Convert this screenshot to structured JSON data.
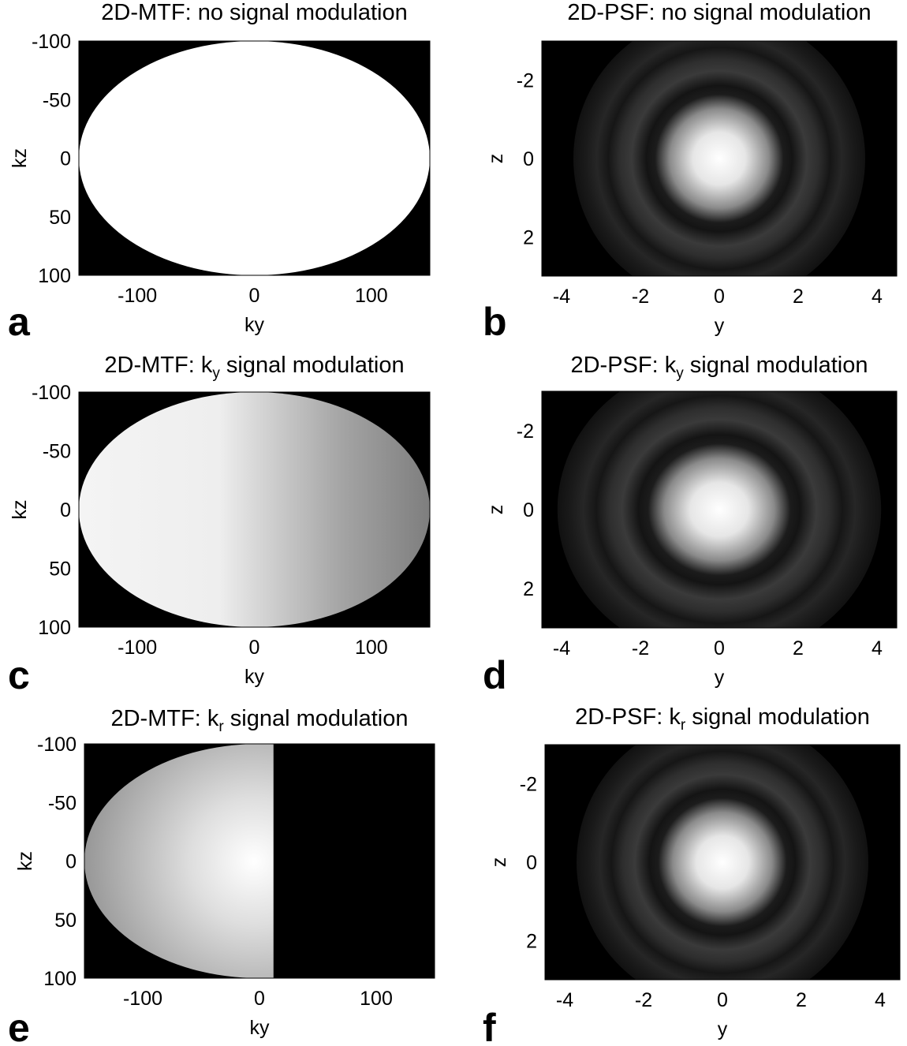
{
  "figure": {
    "panel_letters": [
      "a",
      "b",
      "c",
      "d",
      "e",
      "f"
    ]
  },
  "chart_data": [
    {
      "type": "heatmap",
      "letter": "a",
      "kind": "mtf",
      "title": {
        "prefix": "2D-MTF: ",
        "sym": "",
        "sub": "",
        "rest": "no signal modulation"
      },
      "xlabel": "ky",
      "ylabel": "kz",
      "xlim": [
        -150,
        150
      ],
      "ylim": [
        -100,
        100
      ],
      "xticks": [
        -100,
        0,
        100
      ],
      "yticks": [
        -100,
        -50,
        0,
        50,
        100
      ],
      "ellipse_semi_axes": [
        150,
        100
      ],
      "intensity": "uniform white inside ellipse, black outside"
    },
    {
      "type": "heatmap",
      "letter": "b",
      "kind": "psf",
      "title": {
        "prefix": "2D-PSF: ",
        "sym": "",
        "sub": "",
        "rest": "no signal modulation"
      },
      "xlabel": "y",
      "ylabel": "z",
      "xlim": [
        -4.5,
        4.5
      ],
      "ylim": [
        -3,
        3
      ],
      "xticks": [
        -4,
        -2,
        0,
        2,
        4
      ],
      "yticks": [
        -2,
        0,
        2
      ],
      "intensity": "bright central peak with faint concentric rings (Airy-like)"
    },
    {
      "type": "heatmap",
      "letter": "c",
      "kind": "mtf",
      "title": {
        "prefix": "2D-MTF: ",
        "sym": "k",
        "sub": "y",
        "rest": " signal modulation"
      },
      "xlabel": "ky",
      "ylabel": "kz",
      "xlim": [
        -150,
        150
      ],
      "ylim": [
        -100,
        100
      ],
      "xticks": [
        -100,
        0,
        100
      ],
      "yticks": [
        -100,
        -50,
        0,
        50,
        100
      ],
      "ellipse_semi_axes": [
        150,
        100
      ],
      "intensity": "ellipse shaded along ky: bright on negative ky, darkening toward positive ky"
    },
    {
      "type": "heatmap",
      "letter": "d",
      "kind": "psf",
      "title": {
        "prefix": "2D-PSF: ",
        "sym": "k",
        "sub": "y",
        "rest": " signal modulation"
      },
      "xlabel": "y",
      "ylabel": "z",
      "xlim": [
        -4.5,
        4.5
      ],
      "ylim": [
        -3,
        3
      ],
      "xticks": [
        -4,
        -2,
        0,
        2,
        4
      ],
      "yticks": [
        -2,
        0,
        2
      ],
      "intensity": "central peak slightly broadened along y with faint rings"
    },
    {
      "type": "heatmap",
      "letter": "e",
      "kind": "mtf",
      "title": {
        "prefix": "2D-MTF: ",
        "sym": "k",
        "sub": "r",
        "rest": " signal modulation"
      },
      "xlabel": "ky",
      "ylabel": "kz",
      "xlim": [
        -150,
        150
      ],
      "ylim": [
        -100,
        100
      ],
      "xticks": [
        -100,
        0,
        100
      ],
      "yticks": [
        -100,
        -50,
        0,
        50,
        100
      ],
      "ellipse_semi_axes": [
        150,
        100
      ],
      "cutoff_ky": 12,
      "intensity": "left half-ellipse only, radial shading brightest at center; black for ky > 12"
    },
    {
      "type": "heatmap",
      "letter": "f",
      "kind": "psf",
      "title": {
        "prefix": "2D-PSF: ",
        "sym": "k",
        "sub": "r",
        "rest": " signal modulation"
      },
      "xlabel": "y",
      "ylabel": "z",
      "xlim": [
        -4.5,
        4.5
      ],
      "ylim": [
        -3,
        3
      ],
      "xticks": [
        -4,
        -2,
        0,
        2,
        4
      ],
      "yticks": [
        -2,
        0,
        2
      ],
      "intensity": "bright central peak with faint concentric rings"
    }
  ]
}
